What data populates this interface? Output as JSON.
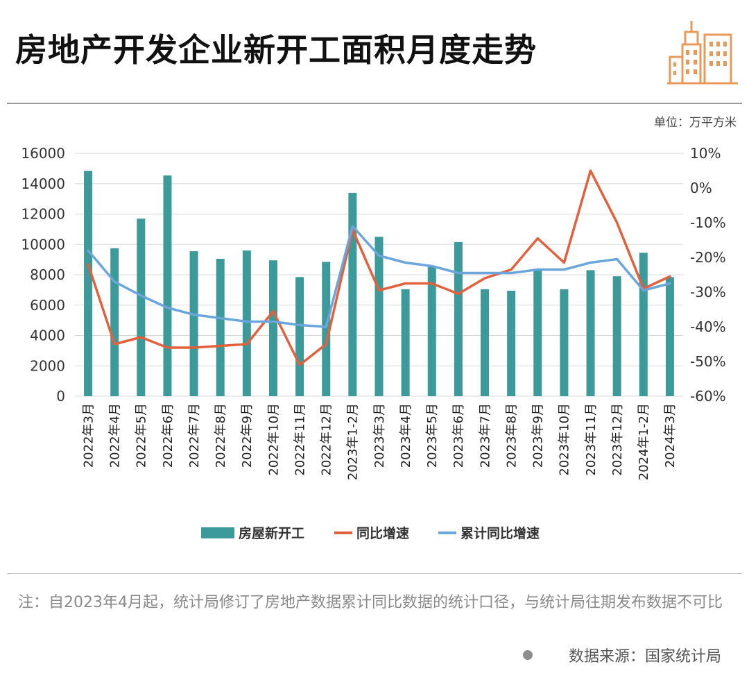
{
  "title": "房地产开发企业新开工面积月度走势",
  "unit": "单位：万平方米",
  "logo_icon": "buildings-icon",
  "note": "注：自2023年4月起，统计局修订了房地产数据累计同比数据的统计口径，与统计局往期发布数据不可比",
  "source": "数据来源：国家统计局",
  "colors": {
    "bar": "#3d9a9b",
    "yoy": "#e3603c",
    "cum": "#6aa6db",
    "accent": "#e8985a"
  },
  "chart_data": {
    "type": "bar",
    "categories": [
      "2022年3月",
      "2022年4月",
      "2022年5月",
      "2022年6月",
      "2022年7月",
      "2022年8月",
      "2022年9月",
      "2022年10月",
      "2022年11月",
      "2022年12月",
      "2023年1-2月",
      "2023年3月",
      "2023年4月",
      "2023年5月",
      "2023年6月",
      "2023年7月",
      "2023年8月",
      "2023年9月",
      "2023年10月",
      "2023年11月",
      "2023年12月",
      "2024年1-2月",
      "2024年3月"
    ],
    "series": [
      {
        "name": "房屋新开工",
        "axis": "left",
        "type": "bar",
        "values": [
          14850,
          9750,
          11700,
          14550,
          9550,
          9050,
          9600,
          8950,
          7850,
          8850,
          13400,
          10500,
          7050,
          8550,
          10150,
          7050,
          6950,
          8300,
          7050,
          8300,
          7900,
          9450,
          7850
        ]
      },
      {
        "name": "同比增速",
        "axis": "right",
        "type": "line",
        "values": [
          -22,
          -45,
          -43,
          -46,
          -46,
          -45.5,
          -45,
          -35.5,
          -51,
          -45,
          -12,
          -29.5,
          -27.5,
          -27.5,
          -30.5,
          -26,
          -23.5,
          -14.5,
          -21.5,
          5,
          -10,
          -29,
          -25.5
        ]
      },
      {
        "name": "累计同比增速",
        "axis": "right",
        "type": "line",
        "values": [
          -18,
          -27,
          -31,
          -34.5,
          -36.5,
          -37.5,
          -38.5,
          -38.5,
          -39.5,
          -40,
          -11,
          -19.5,
          -21.5,
          -22.5,
          -24.5,
          -24.5,
          -24.5,
          -23.5,
          -23.5,
          -21.5,
          -20.5,
          -29.5,
          -27.5
        ]
      }
    ],
    "left_ticks": [
      "0",
      "2000",
      "4000",
      "6000",
      "8000",
      "10000",
      "12000",
      "14000",
      "16000"
    ],
    "right_ticks": [
      "-60%",
      "-50%",
      "-40%",
      "-30%",
      "-20%",
      "-10%",
      "0%",
      "10%"
    ],
    "ylim_left": [
      0,
      16000
    ],
    "ylim_right": [
      -60,
      10
    ],
    "grid": true,
    "legend_position": "bottom-center"
  }
}
